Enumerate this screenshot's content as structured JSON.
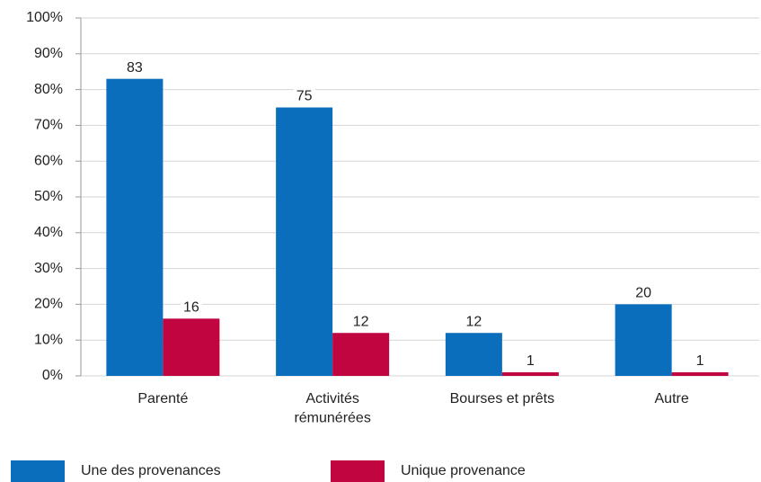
{
  "chart_data": {
    "type": "bar",
    "categories": [
      "Parenté",
      "Activités\nrémunérées",
      "Bourses et prêts",
      "Autre"
    ],
    "series": [
      {
        "name": "Une des provenances",
        "color": "#0b6ebc",
        "values": [
          83,
          75,
          12,
          20
        ]
      },
      {
        "name": "Unique provenance",
        "color": "#c10540",
        "values": [
          16,
          12,
          1,
          1
        ]
      }
    ],
    "ylim": [
      0,
      100
    ],
    "yticks": [
      {
        "value": 0,
        "label": "0%"
      },
      {
        "value": 10,
        "label": "10%"
      },
      {
        "value": 20,
        "label": "20%"
      },
      {
        "value": 30,
        "label": "30%"
      },
      {
        "value": 40,
        "label": "40%"
      },
      {
        "value": 50,
        "label": "50%"
      },
      {
        "value": 60,
        "label": "60%"
      },
      {
        "value": 70,
        "label": "70%"
      },
      {
        "value": 80,
        "label": "80%"
      },
      {
        "value": 90,
        "label": "90%"
      },
      {
        "value": 100,
        "label": "100%"
      }
    ],
    "grid": true,
    "legend": "bottom"
  }
}
